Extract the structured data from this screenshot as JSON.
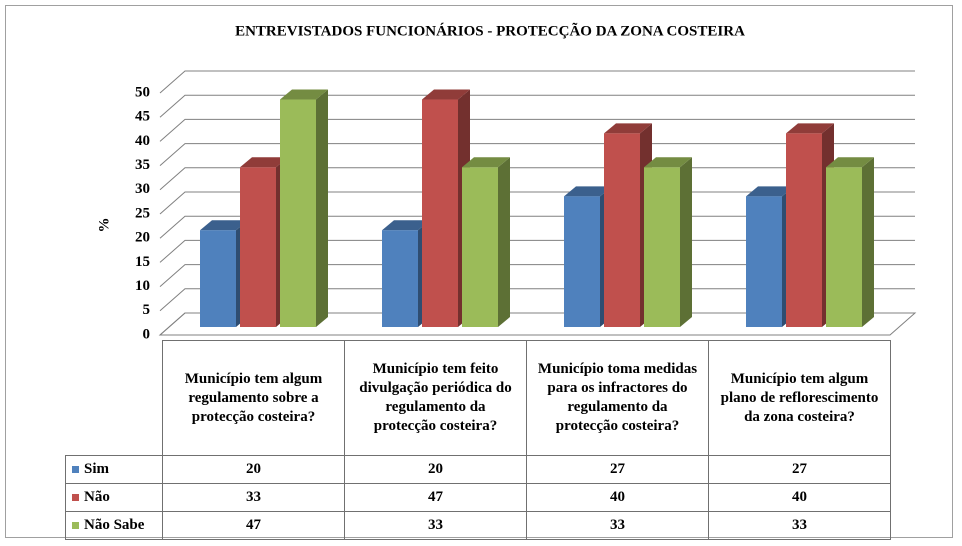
{
  "chart_data": {
    "type": "bar3d",
    "title": "ENTREVISTADOS FUNCIONÁRIOS - PROTECÇÃO DA ZONA COSTEIRA",
    "y_label": "%",
    "categories": [
      "Município tem algum regulamento sobre a protecção costeira?",
      "Município tem feito divulgação periódica do regulamento da protecção costeira?",
      "Município toma medidas para os infractores do regulamento da protecção costeira?",
      "Município tem algum plano de reflorescimento da zona costeira?"
    ],
    "series": [
      {
        "name": "Sim",
        "color": "#4f81bd",
        "values": [
          20,
          20,
          27,
          27
        ]
      },
      {
        "name": "Não",
        "color": "#c0504d",
        "values": [
          33,
          47,
          40,
          40
        ]
      },
      {
        "name": "Não Sabe",
        "color": "#9bbb59",
        "values": [
          47,
          33,
          33,
          33
        ]
      }
    ],
    "ylim": [
      0,
      50
    ],
    "yticks": [
      0,
      5,
      10,
      15,
      20,
      25,
      30,
      35,
      40,
      45,
      50
    ],
    "grid": true
  }
}
